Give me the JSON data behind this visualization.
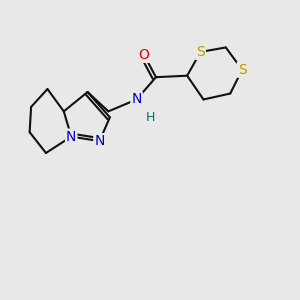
{
  "bg_color": "#e8e8e8",
  "atom_colors": {
    "S": "#b8a000",
    "O": "#ee0000",
    "N": "#0000cc",
    "C": "#111111",
    "H": "#007070"
  },
  "bond_color": "#111111",
  "bond_width": 1.5,
  "figsize": [
    3.0,
    3.0
  ],
  "dpi": 100,
  "xlim": [
    0,
    10
  ],
  "ylim": [
    0,
    10
  ]
}
